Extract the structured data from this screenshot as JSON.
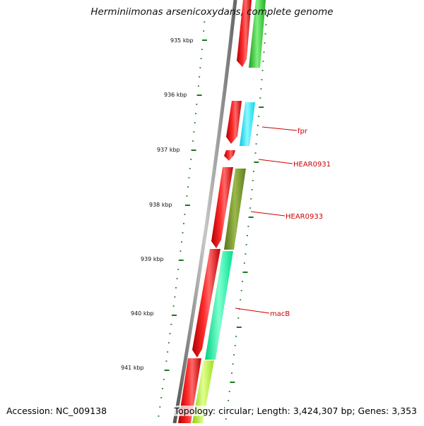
{
  "title": "Herminiimonas arsenicoxydans, complete genome",
  "footer": {
    "accession": "Accession: NC_009138",
    "topology": "Topology: circular; Length: 3,424,307 bp; Genes: 3,353"
  },
  "scale_labels": [
    "935 kbp",
    "936 kbp",
    "937 kbp",
    "938 kbp",
    "939 kbp",
    "940 kbp",
    "941 kbp"
  ],
  "gene_labels": [
    "fpr",
    "HEAR0931",
    "HEAR0933",
    "macB"
  ],
  "colors": {
    "backbone": "#8a8a8a",
    "tick": "#1a7a1a",
    "strand_red": "#ff0000",
    "label_red": "#cc0000",
    "green": "#2ecc2e",
    "cyan": "#00e5ff",
    "olive": "#6b8e23",
    "spring": "#00f5a0",
    "lime": "#b4ff28"
  }
}
